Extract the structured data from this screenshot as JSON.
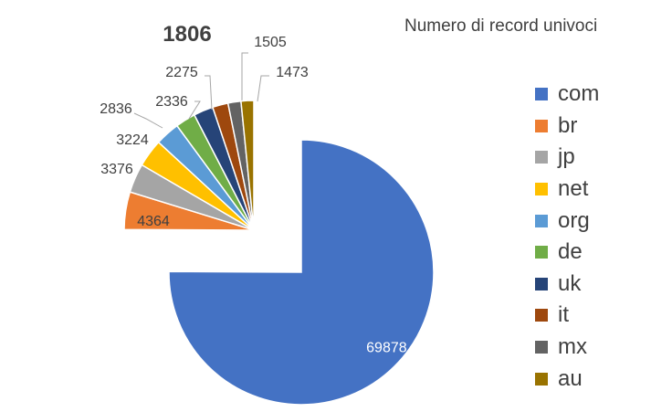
{
  "chart_data": {
    "type": "pie",
    "title": "Numero di record univoci",
    "categories": [
      "com",
      "br",
      "jp",
      "net",
      "org",
      "de",
      "uk",
      "it",
      "mx",
      "au"
    ],
    "values": [
      69878,
      4364,
      3376,
      3224,
      2836,
      2336,
      2275,
      1806,
      1505,
      1473
    ],
    "value_labels": [
      "69878",
      "4364",
      "3376",
      "3224",
      "2836",
      "2336",
      "2275",
      "1806",
      "1505",
      "1473"
    ],
    "colors": [
      "#4472C4",
      "#ED7D31",
      "#A5A5A5",
      "#FFC000",
      "#5B9BD5",
      "#70AD47",
      "#264478",
      "#9E480E",
      "#636363",
      "#997300"
    ],
    "highlighted_label": "1806",
    "legend_position": "right",
    "exploded": true,
    "grid": false
  }
}
